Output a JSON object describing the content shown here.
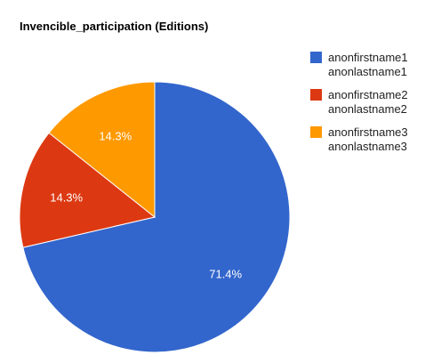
{
  "chart_data": {
    "type": "pie",
    "title": "Invencible_participation (Editions)",
    "slices": [
      {
        "line1": "anonfirstname1",
        "line2": "anonlastname1",
        "percent": 71.4,
        "label": "71.4%",
        "color": "#3366cc"
      },
      {
        "line1": "anonfirstname2",
        "line2": "anonlastname2",
        "percent": 14.3,
        "label": "14.3%",
        "color": "#dc3912"
      },
      {
        "line1": "anonfirstname3",
        "line2": "anonlastname3",
        "percent": 14.3,
        "label": "14.3%",
        "color": "#ff9900"
      }
    ],
    "legend_position": "right"
  }
}
